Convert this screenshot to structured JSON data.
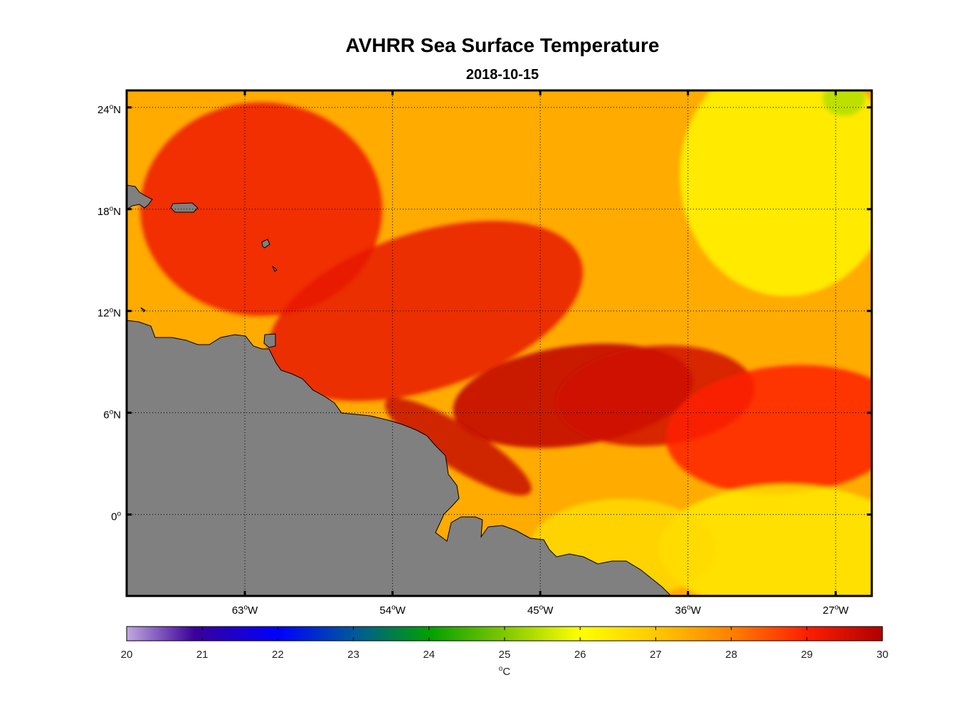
{
  "title": "AVHRR Sea Surface Temperature",
  "subtitle": "2018-10-15",
  "map": {
    "lon_range": [
      -70.2,
      -24.8
    ],
    "lat_range": [
      -4.8,
      25.0
    ],
    "lat_ticks": [
      {
        "value": 24,
        "label": "24",
        "deg": "o",
        "hemi": "N"
      },
      {
        "value": 18,
        "label": "18",
        "deg": "o",
        "hemi": "N"
      },
      {
        "value": 12,
        "label": "12",
        "deg": "o",
        "hemi": "N"
      },
      {
        "value": 6,
        "label": "6",
        "deg": "o",
        "hemi": "N"
      },
      {
        "value": 0,
        "label": "0",
        "deg": "o",
        "hemi": ""
      }
    ],
    "lon_ticks": [
      {
        "value": -63,
        "label": "63",
        "deg": "o",
        "hemi": "W"
      },
      {
        "value": -54,
        "label": "54",
        "deg": "o",
        "hemi": "W"
      },
      {
        "value": -45,
        "label": "45",
        "deg": "o",
        "hemi": "W"
      },
      {
        "value": -36,
        "label": "36",
        "deg": "o",
        "hemi": "W"
      },
      {
        "value": -27,
        "label": "27",
        "deg": "o",
        "hemi": "W"
      }
    ],
    "grid": "dotted",
    "land_color": "#808080",
    "background_sst_c": 27.4,
    "sst_features_c": [
      {
        "name": "northwest warm pool",
        "lon": -62,
        "lat": 18,
        "sst": 29.2
      },
      {
        "name": "central warm band",
        "lon": -52,
        "lat": 12,
        "sst": 29.3
      },
      {
        "name": "warm tongue core",
        "lon": -43,
        "lat": 7,
        "sst": 29.8
      },
      {
        "name": "warm tongue core east",
        "lon": -38,
        "lat": 7,
        "sst": 29.6
      },
      {
        "name": "coastal current core",
        "lon": -50,
        "lat": 4,
        "sst": 29.7
      },
      {
        "name": "eastern warm band",
        "lon": -30,
        "lat": 5,
        "sst": 29.0
      },
      {
        "name": "northeast cool area",
        "lon": -30,
        "lat": 20,
        "sst": 26.2
      },
      {
        "name": "southeast cool area",
        "lon": -30,
        "lat": -2,
        "sst": 26.4
      },
      {
        "name": "south central cool area",
        "lon": -40,
        "lat": -2,
        "sst": 26.7
      },
      {
        "name": "far northeast minimum",
        "lon": -26.5,
        "lat": 24.5,
        "sst": 25.4
      }
    ]
  },
  "colorbar": {
    "min": 20,
    "max": 30,
    "ticks": [
      "20",
      "21",
      "22",
      "23",
      "24",
      "25",
      "26",
      "27",
      "28",
      "29",
      "30"
    ],
    "unit_deg": "o",
    "unit": "C",
    "colormap_stops": [
      {
        "value": 20.0,
        "color": "#c3a8e0"
      },
      {
        "value": 20.9,
        "color": "#3a009a"
      },
      {
        "value": 22.0,
        "color": "#0000ff"
      },
      {
        "value": 23.0,
        "color": "#00589a"
      },
      {
        "value": 24.0,
        "color": "#00a000"
      },
      {
        "value": 25.0,
        "color": "#80c800"
      },
      {
        "value": 26.0,
        "color": "#ffff00"
      },
      {
        "value": 27.0,
        "color": "#ffc800"
      },
      {
        "value": 28.0,
        "color": "#ff8000"
      },
      {
        "value": 29.0,
        "color": "#ff1e00"
      },
      {
        "value": 30.0,
        "color": "#b00000"
      }
    ]
  }
}
